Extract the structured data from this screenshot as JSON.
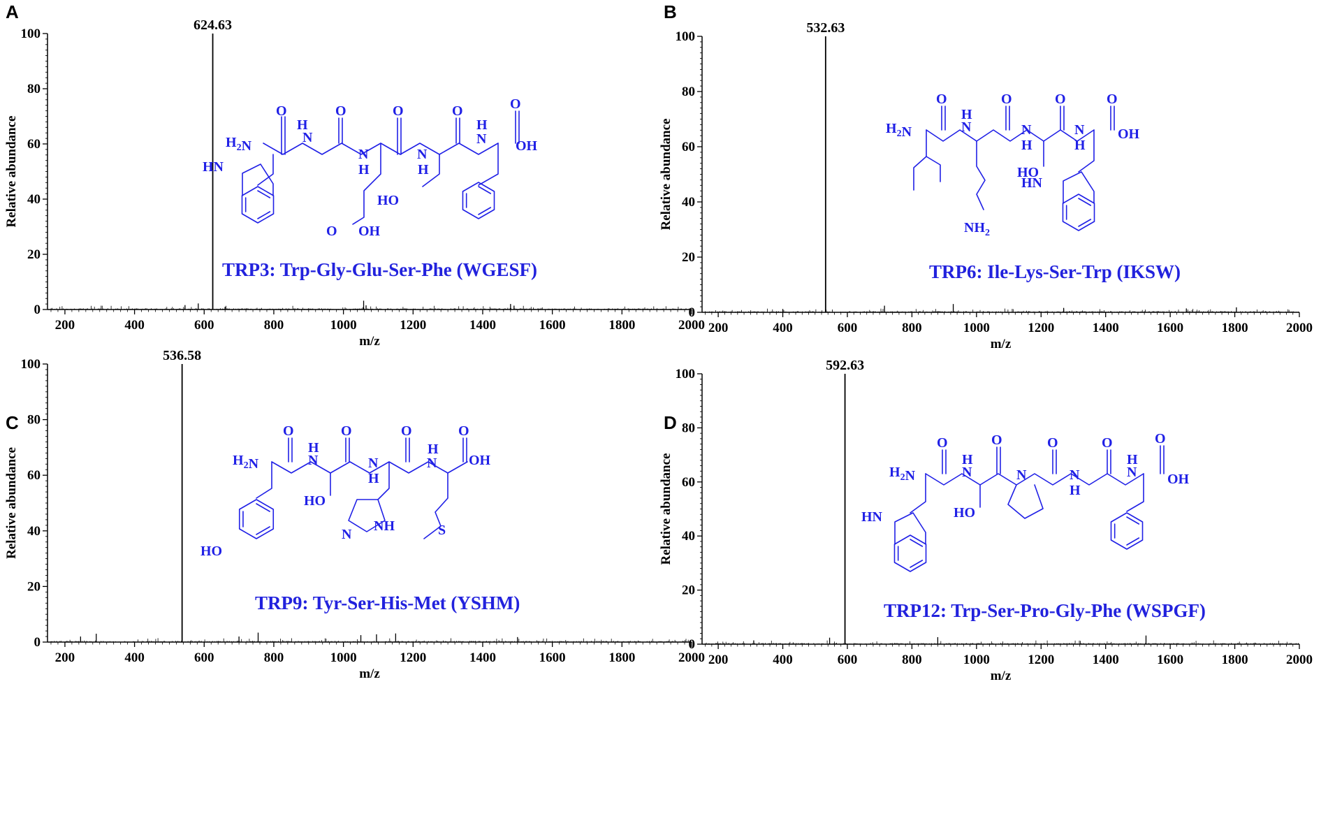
{
  "chart_data": [
    {
      "type": "line",
      "panel": "A",
      "xlabel": "m/z",
      "ylabel": "Relative abundance",
      "xlim": [
        150,
        2000
      ],
      "ylim": [
        0,
        100
      ],
      "xticks": [
        200,
        400,
        600,
        800,
        1000,
        1200,
        1400,
        1600,
        1800,
        2000
      ],
      "yticks": [
        0,
        20,
        40,
        60,
        80,
        100
      ],
      "peak": {
        "mz": 624.63,
        "abundance": 100,
        "label": "624.63"
      },
      "minor_peaks": [
        {
          "mz": 545,
          "abundance": 1.6
        },
        {
          "mz": 583,
          "abundance": 2.2
        },
        {
          "mz": 660,
          "abundance": 1.0
        },
        {
          "mz": 1058,
          "abundance": 3.2
        },
        {
          "mz": 1065,
          "abundance": 1.5
        },
        {
          "mz": 1480,
          "abundance": 2.0
        },
        {
          "mz": 1490,
          "abundance": 1.4
        }
      ],
      "compound_label": "TRP3:  Trp-Gly-Glu-Ser-Phe (WGESF)",
      "structure": "Trp-Gly-Glu-Ser-Phe"
    },
    {
      "type": "line",
      "panel": "B",
      "xlabel": "m/z",
      "ylabel": "Relative abundance",
      "xlim": [
        150,
        2000
      ],
      "ylim": [
        0,
        100
      ],
      "xticks": [
        200,
        400,
        600,
        800,
        1000,
        1200,
        1400,
        1600,
        1800,
        2000
      ],
      "yticks": [
        0,
        20,
        40,
        60,
        80,
        100
      ],
      "peak": {
        "mz": 532.63,
        "abundance": 100,
        "label": "532.63"
      },
      "minor_peaks": [
        {
          "mz": 400,
          "abundance": 1.2
        },
        {
          "mz": 715,
          "abundance": 2.4
        },
        {
          "mz": 928,
          "abundance": 3.0
        },
        {
          "mz": 1270,
          "abundance": 1.6
        },
        {
          "mz": 1650,
          "abundance": 1.4
        },
        {
          "mz": 1805,
          "abundance": 1.8
        }
      ],
      "compound_label": "TRP6:  Ile-Lys-Ser-Trp (IKSW)",
      "structure": "Ile-Lys-Ser-Trp"
    },
    {
      "type": "line",
      "panel": "C",
      "xlabel": "m/z",
      "ylabel": "Relative abundance",
      "xlim": [
        150,
        2000
      ],
      "ylim": [
        0,
        100
      ],
      "xticks": [
        200,
        400,
        600,
        800,
        1000,
        1200,
        1400,
        1600,
        1800,
        2000
      ],
      "yticks": [
        0,
        20,
        40,
        60,
        80,
        100
      ],
      "peak": {
        "mz": 536.58,
        "abundance": 100,
        "label": "536.58"
      },
      "minor_peaks": [
        {
          "mz": 245,
          "abundance": 2.0
        },
        {
          "mz": 290,
          "abundance": 3.0
        },
        {
          "mz": 700,
          "abundance": 2.0
        },
        {
          "mz": 755,
          "abundance": 3.4
        },
        {
          "mz": 1050,
          "abundance": 2.5
        },
        {
          "mz": 1095,
          "abundance": 2.8
        },
        {
          "mz": 1150,
          "abundance": 3.1
        },
        {
          "mz": 1500,
          "abundance": 1.8
        }
      ],
      "compound_label": "TRP9:  Tyr-Ser-His-Met (YSHM)",
      "structure": "Tyr-Ser-His-Met"
    },
    {
      "type": "line",
      "panel": "D",
      "xlabel": "m/z",
      "ylabel": "Relative abundance",
      "xlim": [
        150,
        2000
      ],
      "ylim": [
        0,
        100
      ],
      "xticks": [
        200,
        400,
        600,
        800,
        1000,
        1200,
        1400,
        1600,
        1800,
        2000
      ],
      "yticks": [
        0,
        20,
        40,
        60,
        80,
        100
      ],
      "peak": {
        "mz": 592.63,
        "abundance": 100,
        "label": "592.63"
      },
      "minor_peaks": [
        {
          "mz": 310,
          "abundance": 1.4
        },
        {
          "mz": 545,
          "abundance": 2.4
        },
        {
          "mz": 880,
          "abundance": 2.6
        },
        {
          "mz": 1525,
          "abundance": 3.2
        }
      ],
      "compound_label": "TRP12:  Trp-Ser-Pro-Gly-Phe (WSPGF)",
      "structure": "Trp-Ser-Pro-Gly-Phe"
    }
  ],
  "molecule_labels": {
    "o": "O",
    "h": "H",
    "n": "N",
    "nh": "NH",
    "hn": "HN",
    "oh": "OH",
    "ho": "HO",
    "s": "S",
    "h2n_a": "H",
    "h2n_b": "N",
    "nh2_a": "NH",
    "sub2": "2"
  },
  "colors": {
    "structure": "#2020e6",
    "label": "#2222dd",
    "axis": "#000000"
  }
}
